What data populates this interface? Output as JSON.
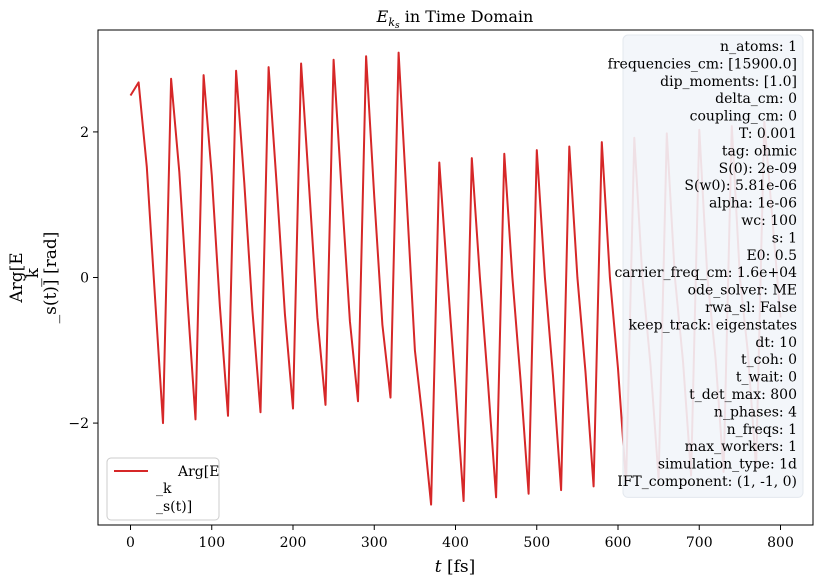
{
  "chart_data": {
    "type": "line",
    "title": "E_{k_s} in Time Domain",
    "xlabel": "t [fs]",
    "ylabel_lines": [
      "Arg[E",
      "_k",
      "_s(t)] [rad]"
    ],
    "xlim": [
      -40,
      840
    ],
    "ylim": [
      -3.4,
      3.4
    ],
    "x_ticks": [
      0,
      100,
      200,
      300,
      400,
      500,
      600,
      700,
      800
    ],
    "y_ticks": [
      -2,
      0,
      2
    ],
    "x_tick_labels": [
      "0",
      "100",
      "200",
      "300",
      "400",
      "500",
      "600",
      "700",
      "800"
    ],
    "y_tick_labels": [
      "−2",
      "0",
      "2"
    ],
    "grid": false,
    "legend_placement": "lower-left",
    "series": [
      {
        "name": "Arg[E _k _s(t)]",
        "color": "#d62728",
        "x": [
          0,
          10,
          20,
          30,
          40,
          50,
          60,
          70,
          80,
          90,
          100,
          110,
          120,
          130,
          140,
          150,
          160,
          170,
          180,
          190,
          200,
          210,
          220,
          230,
          240,
          250,
          260,
          270,
          280,
          290,
          300,
          310,
          320,
          330,
          340,
          350,
          360,
          370,
          380,
          390,
          400,
          410,
          420,
          430,
          440,
          450,
          460,
          470,
          480,
          490,
          500,
          510,
          520,
          530,
          540,
          550,
          560,
          570,
          580,
          590,
          600,
          610,
          620,
          630,
          640,
          650,
          660,
          670,
          680,
          690,
          700,
          710,
          720,
          730,
          740,
          750,
          760,
          770,
          780,
          790,
          800
        ],
        "y": [
          2.5,
          2.68,
          1.52,
          -0.25,
          -2.0,
          2.73,
          1.45,
          -0.3,
          -1.95,
          2.78,
          1.4,
          -0.4,
          -1.9,
          2.84,
          1.3,
          -0.45,
          -1.85,
          2.89,
          1.25,
          -0.5,
          -1.8,
          2.94,
          1.2,
          -0.55,
          -1.75,
          2.99,
          1.15,
          -0.6,
          -1.7,
          3.04,
          1.1,
          -0.65,
          -1.65,
          3.09,
          1.05,
          -1.0,
          -2.0,
          -3.12,
          1.58,
          0.0,
          -1.5,
          -3.07,
          1.64,
          0.0,
          -1.45,
          -3.02,
          1.7,
          0.0,
          -1.4,
          -2.97,
          1.75,
          0.0,
          -1.35,
          -2.92,
          1.8,
          0.0,
          -1.3,
          -2.87,
          1.86,
          0.0,
          -1.25,
          -2.82,
          1.92,
          0.0,
          -1.2,
          -2.77,
          1.98,
          0.0,
          -1.15,
          -2.72,
          2.03,
          0.0,
          -1.1,
          -2.67,
          2.08,
          0.0,
          -1.05,
          -2.62,
          2.14,
          0.8,
          -0.55
        ]
      }
    ]
  },
  "info_box": {
    "lines": [
      "n_atoms: 1",
      "frequencies_cm: [15900.0]",
      "dip_moments: [1.0]",
      "delta_cm: 0",
      "coupling_cm: 0",
      "T: 0.001",
      "tag: ohmic",
      "S(0): 2e-09",
      "S(w0): 5.81e-06",
      "alpha: 1e-06",
      "wc: 100",
      "s: 1",
      "E0: 0.5",
      "carrier_freq_cm: 1.6e+04",
      "ode_solver: ME",
      "rwa_sl: False",
      "keep_track: eigenstates",
      "dt: 10",
      "t_coh: 0",
      "t_wait: 0",
      "t_det_max: 800",
      "n_phases: 4",
      "n_freqs: 1",
      "max_workers: 1",
      "simulation_type: 1d",
      "IFT_component: (1, -1, 0)"
    ],
    "background": "#f2f5f9"
  },
  "legend": {
    "lines": [
      "Arg[E",
      "_k",
      "_s(t)]"
    ]
  }
}
